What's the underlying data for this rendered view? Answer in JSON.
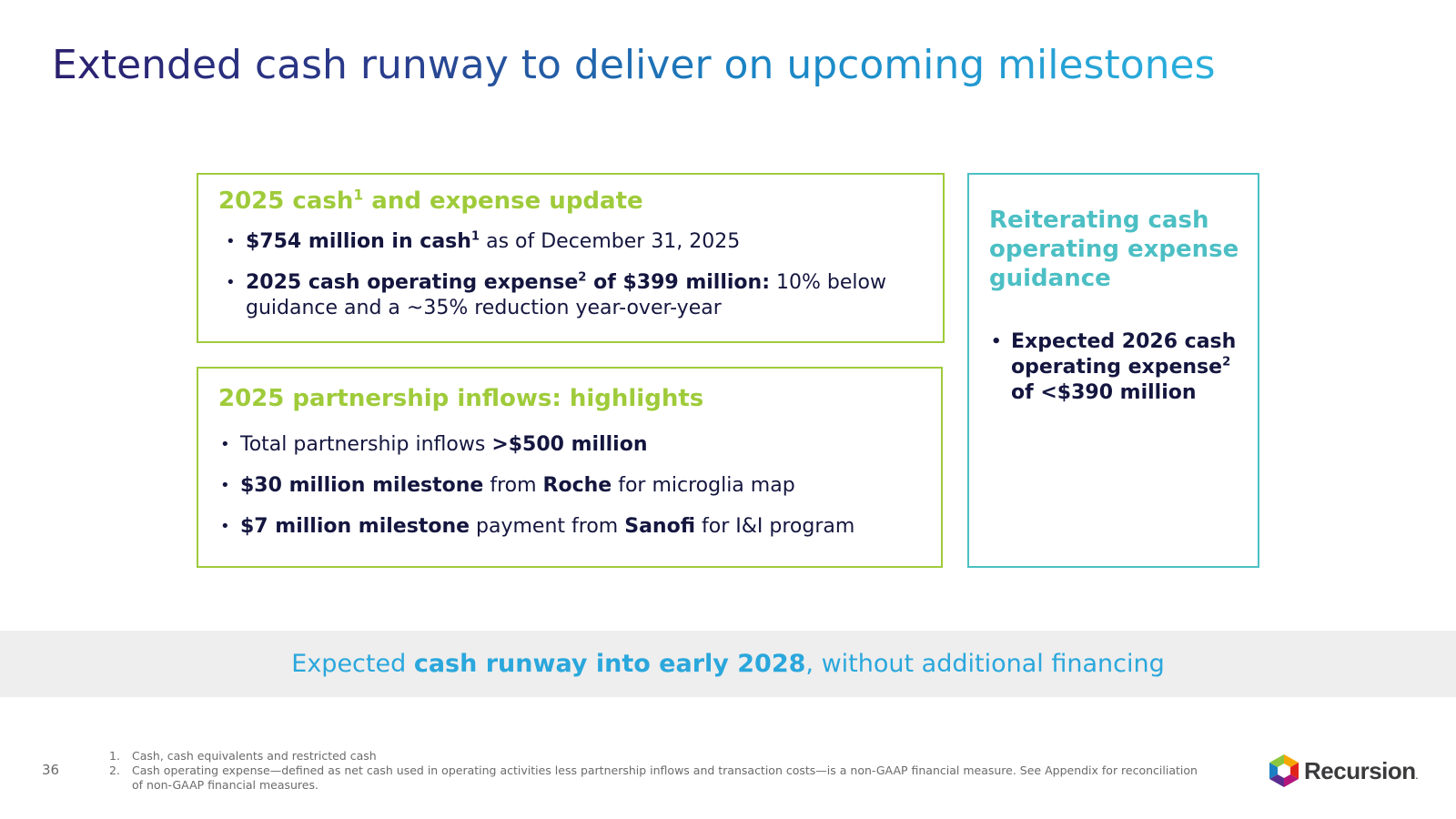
{
  "title": "Extended cash runway to deliver on upcoming milestones",
  "cash_box": {
    "heading_a": "2025 cash",
    "heading_sup": "1",
    "heading_b": " and expense update",
    "bullets": [
      {
        "bold": "$754 million in cash",
        "sup": "1",
        "text": " as of December 31, 2025"
      },
      {
        "bold_a": "2025 cash operating expense",
        "sup": "2",
        "bold_b": " of $399 million:",
        "text": " 10% below guidance and a ~35% reduction year-over-year"
      }
    ]
  },
  "partner_box": {
    "heading": "2025 partnership inflows: highlights",
    "bullets": [
      {
        "text": "Total partnership inflows ",
        "bold": ">$500 million"
      },
      {
        "bold_a": "$30 million milestone",
        "text_a": " from ",
        "bold_b": "Roche",
        "text_b": " for microglia map"
      },
      {
        "bold_a": "$7 million milestone",
        "text_a": " payment from ",
        "bold_b": "Sanofi",
        "text_b": " for I&I program"
      }
    ]
  },
  "guidance_box": {
    "heading": "Reiterating cash operating expense guidance",
    "bullet_a": "Expected 2026 cash operating expense",
    "bullet_sup": "2",
    "bullet_b": "of <$390 million"
  },
  "runway": {
    "text_a": "Expected ",
    "bold": "cash runway into early 2028",
    "text_b": ", without additional financing"
  },
  "page_number": "36",
  "footnotes": [
    {
      "num": "1.",
      "text": "Cash, cash equivalents and restricted cash"
    },
    {
      "num": "2.",
      "text": "Cash operating expense—defined as net cash used in operating activities less partnership inflows and transaction costs—is a non-GAAP financial measure. See Appendix for reconciliation of non-GAAP financial measures."
    }
  ],
  "logo": {
    "name": "Recursion",
    "mark": "."
  },
  "colors": {
    "lime": "#9fcb3b",
    "teal": "#4cbfc4",
    "navy": "#14163f",
    "blue": "#2aa7dc"
  }
}
